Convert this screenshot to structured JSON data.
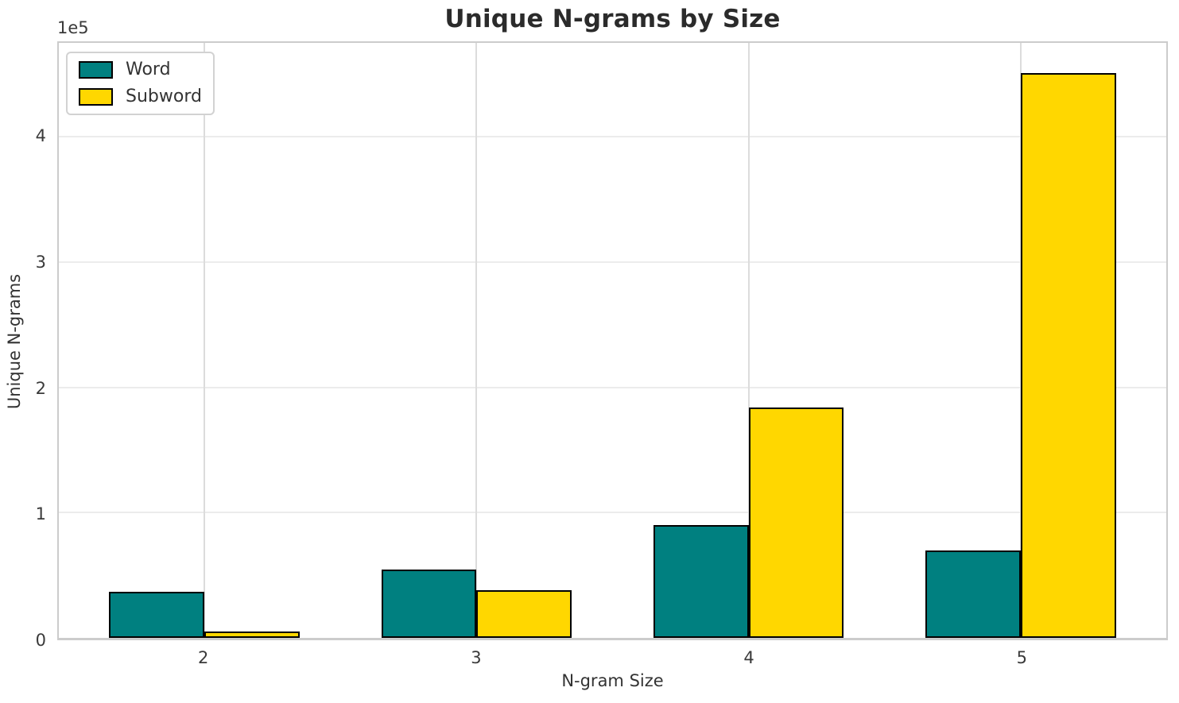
{
  "chart_data": {
    "type": "bar",
    "title": "Unique N-grams by Size",
    "xlabel": "N-gram Size",
    "ylabel": "Unique N-grams",
    "y_offset_text": "1e5",
    "categories": [
      "2",
      "3",
      "4",
      "5"
    ],
    "series": [
      {
        "name": "Word",
        "color": "#008080",
        "values": [
          37000,
          54500,
          90000,
          69500
        ]
      },
      {
        "name": "Subword",
        "color": "#FFD700",
        "values": [
          5000,
          38000,
          184000,
          451000
        ]
      }
    ],
    "bar_width": 0.35,
    "bar_edge_color": "#000000",
    "ylim": [
      0,
      475000
    ],
    "yticks": [
      0,
      100000,
      200000,
      300000,
      400000
    ],
    "ytick_labels": [
      "0",
      "1",
      "2",
      "3",
      "4"
    ],
    "grid": true,
    "legend_position": "upper left",
    "background": "#ffffff"
  }
}
